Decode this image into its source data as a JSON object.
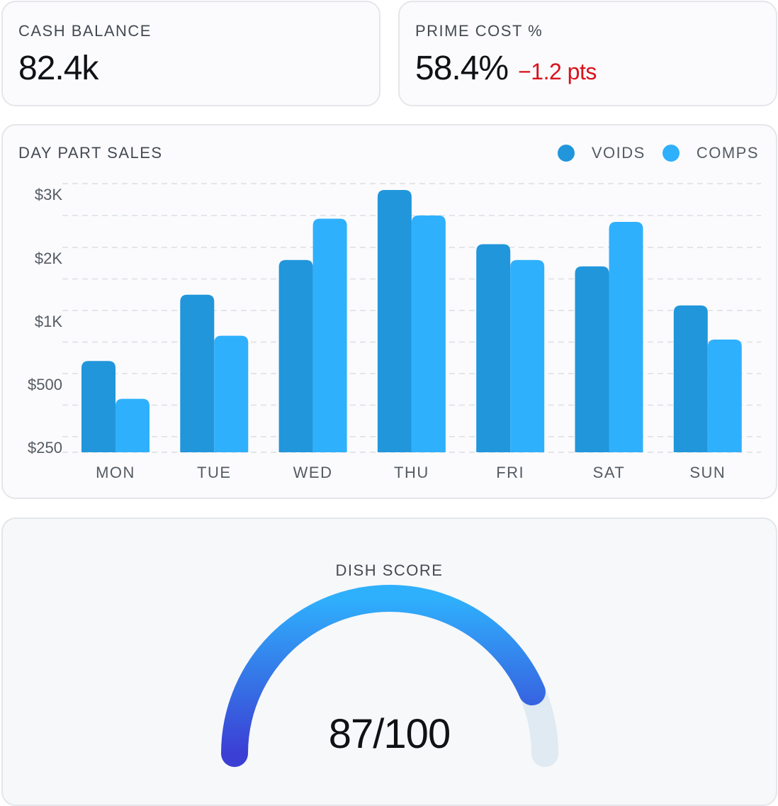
{
  "kpis": {
    "cash_balance": {
      "label": "CASH BALANCE",
      "value": "82.4k"
    },
    "prime_cost": {
      "label": "PRIME COST %",
      "value": "58.4%",
      "delta": "−1.2 pts",
      "delta_color": "#d8121b"
    }
  },
  "chart_data": {
    "type": "bar",
    "title": "DAY PART SALES",
    "categories": [
      "MON",
      "TUE",
      "WED",
      "THU",
      "FRI",
      "SAT",
      "SUN"
    ],
    "series": [
      {
        "name": "VOIDS",
        "color": "#2196db",
        "values": [
          600,
          1250,
          1800,
          2900,
          2050,
          1700,
          1080
        ]
      },
      {
        "name": "COMPS",
        "color": "#2fb0fc",
        "values": [
          400,
          800,
          2450,
          2500,
          1800,
          2400,
          770
        ]
      }
    ],
    "y_ticks": [
      {
        "label": "$3K",
        "value": 3000
      },
      {
        "label": "$2K",
        "value": 2000
      },
      {
        "label": "$1K",
        "value": 1000
      },
      {
        "label": "$500",
        "value": 500
      },
      {
        "label": "$250",
        "value": 250
      }
    ],
    "xlabel": "",
    "ylabel": "",
    "grid": true,
    "legend_position": "top-right"
  },
  "gauge": {
    "title": "DISH SCORE",
    "value": 87,
    "max": 100,
    "display": "87/100",
    "color_start": "#3b3fd4",
    "color_end": "#2fb0fc",
    "track_color": "#dfeaf2"
  }
}
